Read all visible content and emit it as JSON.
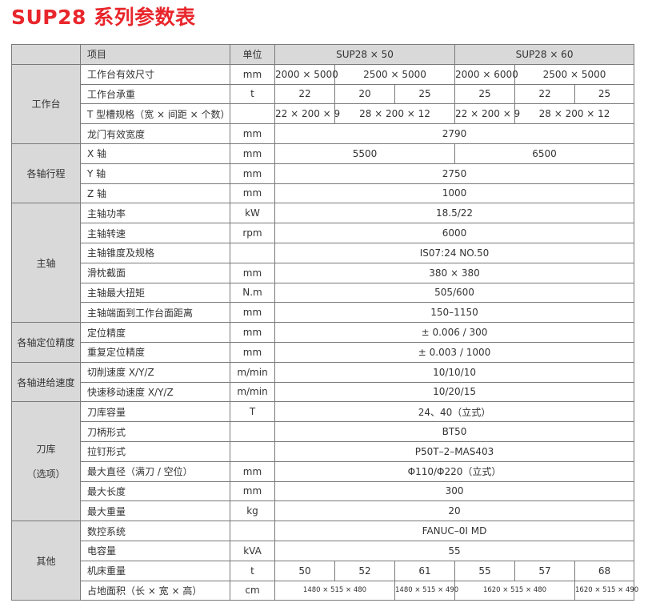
{
  "title": "SUP28 系列参数表",
  "header": {
    "item": "项目",
    "unit": "单位",
    "models": [
      "SUP28 × 50",
      "SUP28 × 60"
    ]
  },
  "groups": [
    {
      "category": [
        "工作台"
      ],
      "rows": [
        {
          "item": "工作台有效尺寸",
          "unit": "mm",
          "cells": [
            {
              "v": "2000 × 5000",
              "span": 1
            },
            {
              "v": "2500 × 5000",
              "span": 2
            },
            {
              "v": "2000 × 6000",
              "span": 1
            },
            {
              "v": "2500 × 5000",
              "span": 2
            }
          ]
        },
        {
          "item": "工作台承重",
          "unit": "t",
          "cells": [
            {
              "v": "22",
              "span": 1
            },
            {
              "v": "20",
              "span": 1
            },
            {
              "v": "25",
              "span": 1
            },
            {
              "v": "25",
              "span": 1
            },
            {
              "v": "22",
              "span": 1
            },
            {
              "v": "25",
              "span": 1
            }
          ]
        },
        {
          "item": "T 型槽规格（宽 × 间距 × 个数）",
          "unit": "",
          "cells": [
            {
              "v": "22 × 200 × 9",
              "span": 1
            },
            {
              "v": "28 × 200 × 12",
              "span": 2
            },
            {
              "v": "22 × 200 × 9",
              "span": 1
            },
            {
              "v": "28 × 200 × 12",
              "span": 2
            }
          ]
        },
        {
          "item": "龙门有效宽度",
          "unit": "mm",
          "cells": [
            {
              "v": "2790",
              "span": 6
            }
          ]
        }
      ]
    },
    {
      "category": [
        "各轴行程"
      ],
      "rows": [
        {
          "item": "X 轴",
          "unit": "mm",
          "cells": [
            {
              "v": "5500",
              "span": 3
            },
            {
              "v": "6500",
              "span": 3
            }
          ]
        },
        {
          "item": "Y 轴",
          "unit": "mm",
          "cells": [
            {
              "v": "2750",
              "span": 6
            }
          ]
        },
        {
          "item": "Z 轴",
          "unit": "mm",
          "cells": [
            {
              "v": "1000",
              "span": 6
            }
          ]
        }
      ]
    },
    {
      "category": [
        "主轴"
      ],
      "rows": [
        {
          "item": "主轴功率",
          "unit": "kW",
          "cells": [
            {
              "v": "18.5/22",
              "span": 6
            }
          ]
        },
        {
          "item": "主轴转速",
          "unit": "rpm",
          "cells": [
            {
              "v": "6000",
              "span": 6
            }
          ]
        },
        {
          "item": "主轴锥度及规格",
          "unit": "",
          "cells": [
            {
              "v": "IS07:24  NO.50",
              "span": 6
            }
          ]
        },
        {
          "item": "滑枕截面",
          "unit": "mm",
          "cells": [
            {
              "v": "380 × 380",
              "span": 6
            }
          ]
        },
        {
          "item": "主轴最大扭矩",
          "unit": "N.m",
          "cells": [
            {
              "v": "505/600",
              "span": 6
            }
          ]
        },
        {
          "item": "主轴端面到工作台面距离",
          "unit": "mm",
          "cells": [
            {
              "v": "150–1150",
              "span": 6
            }
          ]
        }
      ]
    },
    {
      "category": [
        "各轴定位精度"
      ],
      "rows": [
        {
          "item": "定位精度",
          "unit": "mm",
          "cells": [
            {
              "v": "± 0.006  /  300",
              "span": 6
            }
          ]
        },
        {
          "item": "重复定位精度",
          "unit": "mm",
          "cells": [
            {
              "v": "± 0.003  /  1000",
              "span": 6
            }
          ]
        }
      ]
    },
    {
      "category": [
        "各轴进给速度"
      ],
      "rows": [
        {
          "item": "切削速度 X/Y/Z",
          "unit": "m/min",
          "cells": [
            {
              "v": "10/10/10",
              "span": 6
            }
          ]
        },
        {
          "item": "快速移动速度 X/Y/Z",
          "unit": "m/min",
          "cells": [
            {
              "v": "10/20/15",
              "span": 6
            }
          ]
        }
      ]
    },
    {
      "category": [
        "刀库",
        "（选项）"
      ],
      "rows": [
        {
          "item": "刀库容量",
          "unit": "T",
          "cells": [
            {
              "v": "24、40（立式）",
              "span": 6
            }
          ]
        },
        {
          "item": "刀柄形式",
          "unit": "",
          "cells": [
            {
              "v": "BT50",
              "span": 6
            }
          ]
        },
        {
          "item": "拉钉形式",
          "unit": "",
          "cells": [
            {
              "v": "P50T–2–MAS403",
              "span": 6
            }
          ]
        },
        {
          "item": "最大直径（满刀 / 空位）",
          "unit": "mm",
          "cells": [
            {
              "v": "Φ110/Φ220（立式）",
              "span": 6
            }
          ]
        },
        {
          "item": "最大长度",
          "unit": "mm",
          "cells": [
            {
              "v": "300",
              "span": 6
            }
          ]
        },
        {
          "item": "最大重量",
          "unit": "kg",
          "cells": [
            {
              "v": "20",
              "span": 6
            }
          ]
        }
      ]
    },
    {
      "category": [
        "其他"
      ],
      "rows": [
        {
          "item": "数控系统",
          "unit": "",
          "cells": [
            {
              "v": "FANUC–0I MD",
              "span": 6
            }
          ]
        },
        {
          "item": "电容量",
          "unit": "kVA",
          "cells": [
            {
              "v": "55",
              "span": 6
            }
          ]
        },
        {
          "item": "机床重量",
          "unit": "t",
          "cells": [
            {
              "v": "50",
              "span": 1
            },
            {
              "v": "52",
              "span": 1
            },
            {
              "v": "61",
              "span": 1
            },
            {
              "v": "55",
              "span": 1
            },
            {
              "v": "57",
              "span": 1
            },
            {
              "v": "68",
              "span": 1
            }
          ]
        },
        {
          "item": "占地面积（长 × 宽 × 高）",
          "unit": "cm",
          "small": true,
          "cells": [
            {
              "v": "1480 × 515 × 480",
              "span": 2
            },
            {
              "v": "1480 × 515 × 490",
              "span": 1
            },
            {
              "v": "1620 × 515 × 480",
              "span": 2
            },
            {
              "v": "1620 × 515 × 490",
              "span": 1
            }
          ]
        }
      ]
    }
  ]
}
